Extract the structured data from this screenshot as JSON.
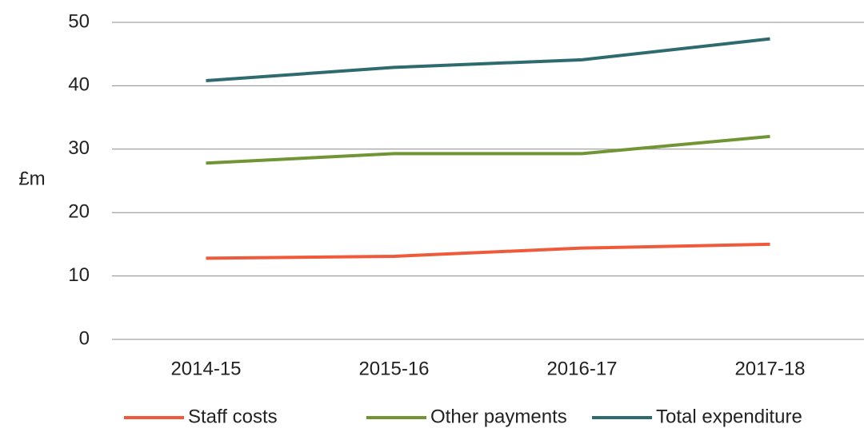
{
  "chart_data": {
    "type": "line",
    "y_label": "£m",
    "categories": [
      "2014-15",
      "2015-16",
      "2016-17",
      "2017-18"
    ],
    "series": [
      {
        "name": "Staff costs",
        "color": "#ef5a3a",
        "values": [
          12.8,
          13.1,
          14.4,
          15.0
        ]
      },
      {
        "name": "Other payments",
        "color": "#6f9535",
        "values": [
          27.8,
          29.3,
          29.3,
          32.0
        ]
      },
      {
        "name": "Total expenditure",
        "color": "#2e6b6e",
        "values": [
          40.8,
          42.9,
          44.1,
          47.4
        ]
      }
    ],
    "ylim": [
      0,
      50
    ],
    "yticks": [
      0,
      10,
      20,
      30,
      40,
      50
    ],
    "grid": true,
    "legend": "bottom"
  }
}
